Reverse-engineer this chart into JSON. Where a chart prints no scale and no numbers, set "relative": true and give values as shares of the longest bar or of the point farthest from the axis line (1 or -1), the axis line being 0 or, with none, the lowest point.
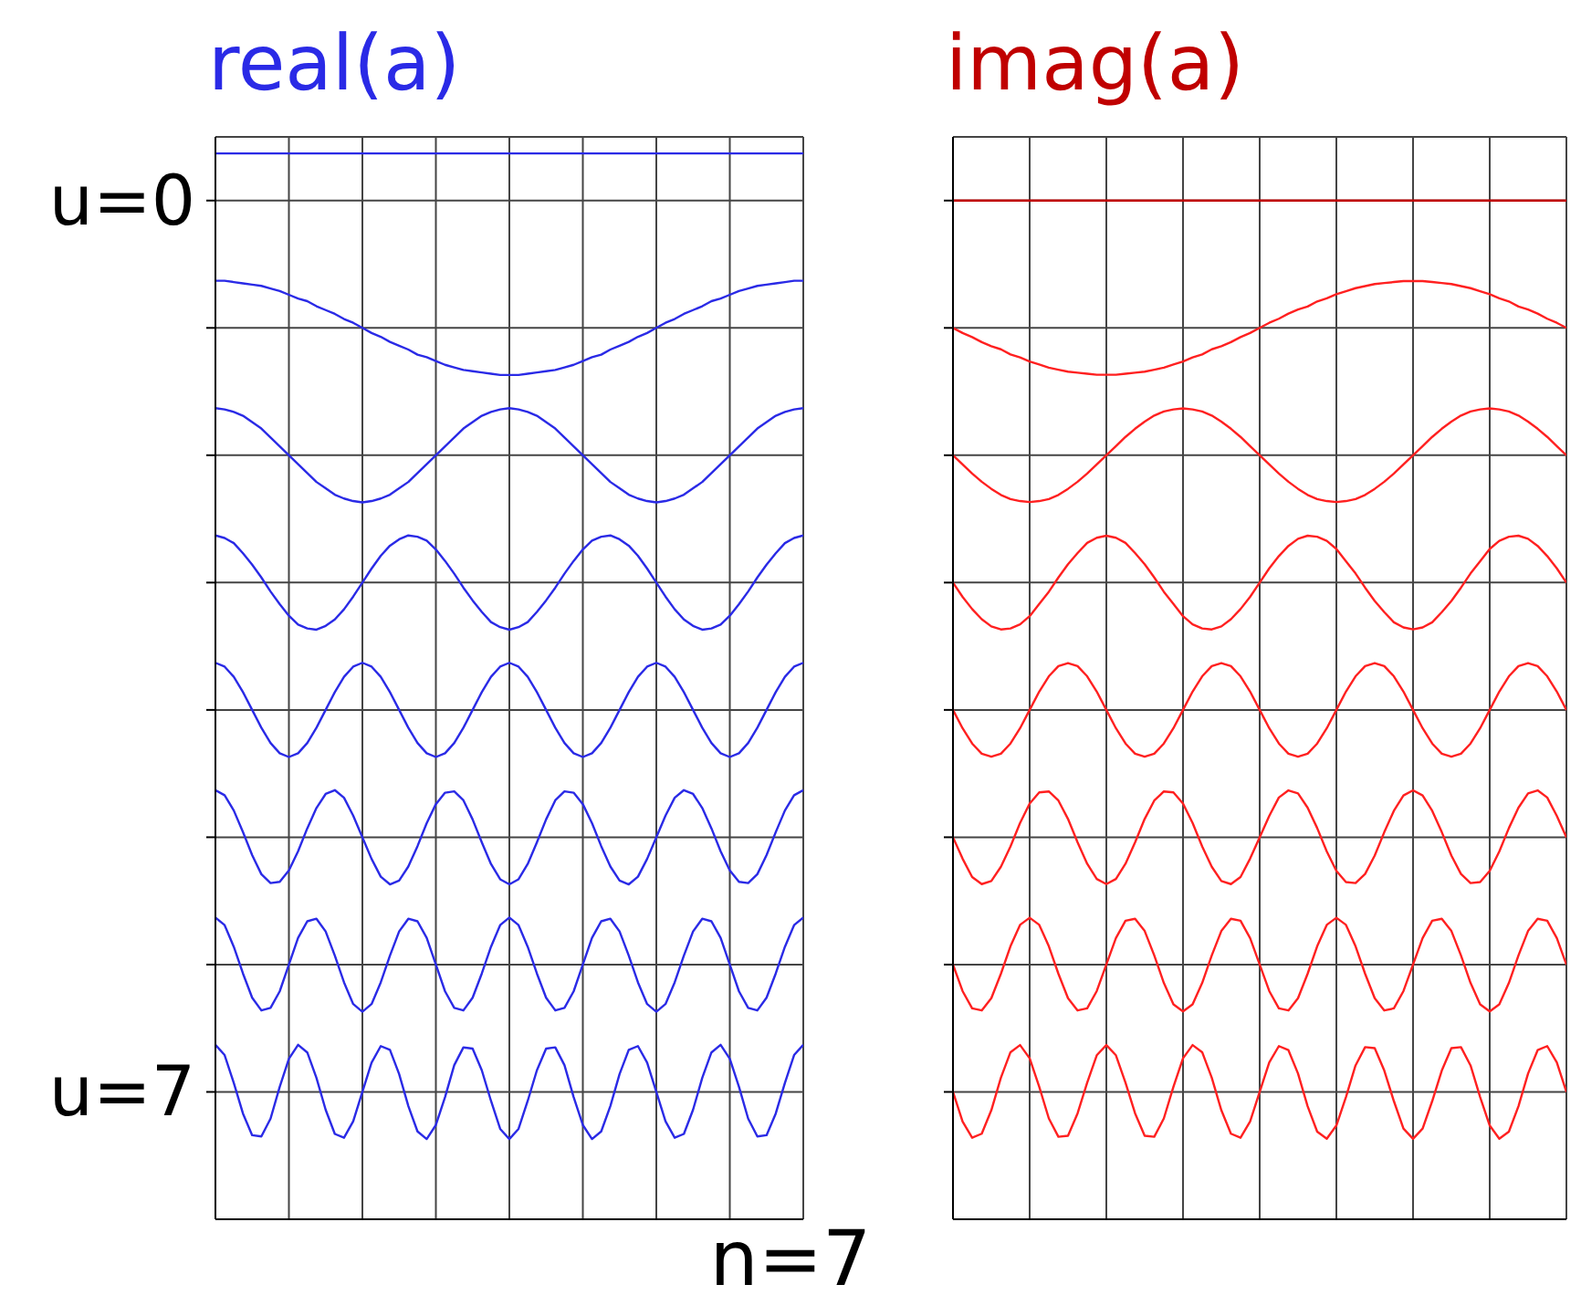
{
  "chart_data": [
    {
      "type": "line",
      "title": "real(a)",
      "annotations": [
        "n=7"
      ],
      "categories": [
        null,
        null,
        null,
        null,
        null,
        null,
        null,
        null,
        null,
        null,
        null,
        null,
        null,
        null,
        null,
        null,
        null,
        null,
        null,
        null,
        null,
        null,
        null,
        null,
        null,
        null,
        null,
        null,
        null,
        null,
        null,
        null,
        null,
        null,
        null,
        null,
        null,
        null,
        null,
        null,
        null,
        null,
        null,
        null,
        null,
        null,
        null,
        null,
        null,
        null,
        null,
        null,
        null,
        null,
        null,
        null,
        null,
        null,
        null,
        null,
        null,
        null,
        null,
        null,
        null
      ],
      "ylim": [
        -8,
        0.5
      ],
      "yticks": [
        {
          "value": 0,
          "label": "u=0"
        },
        {
          "value": -1,
          "label": null
        },
        {
          "value": -2,
          "label": null
        },
        {
          "value": -3,
          "label": null
        },
        {
          "value": -4,
          "label": null
        },
        {
          "value": -5,
          "label": null
        },
        {
          "value": -6,
          "label": null
        },
        {
          "value": -7,
          "label": "u=7"
        }
      ],
      "grid": true,
      "series": [
        {
          "color": "#2a2ae6",
          "values": [
            0.37,
            0.37,
            0.37,
            0.37,
            0.37,
            0.37,
            0.37,
            0.37,
            0.37,
            0.37,
            0.37,
            0.37,
            0.37,
            0.37,
            0.37,
            0.37,
            0.37,
            0.37,
            0.37,
            0.37,
            0.37,
            0.37,
            0.37,
            0.37,
            0.37,
            0.37,
            0.37,
            0.37,
            0.37,
            0.37,
            0.37,
            0.37,
            0.37,
            0.37,
            0.37,
            0.37,
            0.37,
            0.37,
            0.37,
            0.37,
            0.37,
            0.37,
            0.37,
            0.37,
            0.37,
            0.37,
            0.37,
            0.37,
            0.37,
            0.37,
            0.37,
            0.37,
            0.37,
            0.37,
            0.37,
            0.37,
            0.37,
            0.37,
            0.37,
            0.37,
            0.37,
            0.37,
            0.37,
            0.37,
            0.37
          ]
        },
        {
          "color": "#2a2ae6",
          "values": [
            -0.63,
            -0.63,
            -0.64,
            -0.65,
            -0.66,
            -0.67,
            -0.69,
            -0.71,
            -0.74,
            -0.77,
            -0.79,
            -0.83,
            -0.86,
            -0.89,
            -0.93,
            -0.96,
            -1,
            -1.04,
            -1.07,
            -1.11,
            -1.14,
            -1.17,
            -1.21,
            -1.23,
            -1.26,
            -1.29,
            -1.31,
            -1.33,
            -1.34,
            -1.35,
            -1.36,
            -1.37,
            -1.37,
            -1.37,
            -1.36,
            -1.35,
            -1.34,
            -1.33,
            -1.31,
            -1.29,
            -1.26,
            -1.23,
            -1.21,
            -1.17,
            -1.14,
            -1.11,
            -1.07,
            -1.04,
            -1,
            -0.96,
            -0.93,
            -0.89,
            -0.86,
            -0.83,
            -0.79,
            -0.77,
            -0.74,
            -0.71,
            -0.69,
            -0.67,
            -0.66,
            -0.65,
            -0.64,
            -0.63,
            -0.63
          ]
        },
        {
          "color": "#2a2ae6",
          "values": [
            -1.63,
            -1.64,
            -1.66,
            -1.69,
            -1.74,
            -1.79,
            -1.86,
            -1.93,
            -2,
            -2.07,
            -2.14,
            -2.21,
            -2.26,
            -2.31,
            -2.34,
            -2.36,
            -2.37,
            -2.36,
            -2.34,
            -2.31,
            -2.26,
            -2.21,
            -2.14,
            -2.07,
            -2,
            -1.93,
            -1.86,
            -1.79,
            -1.74,
            -1.69,
            -1.66,
            -1.64,
            -1.63,
            -1.64,
            -1.66,
            -1.69,
            -1.74,
            -1.79,
            -1.86,
            -1.93,
            -2,
            -2.07,
            -2.14,
            -2.21,
            -2.26,
            -2.31,
            -2.34,
            -2.36,
            -2.37,
            -2.36,
            -2.34,
            -2.31,
            -2.26,
            -2.21,
            -2.14,
            -2.07,
            -2,
            -1.93,
            -1.86,
            -1.79,
            -1.74,
            -1.69,
            -1.66,
            -1.64,
            -1.63
          ]
        },
        {
          "color": "#2a2ae6",
          "values": [
            -2.63,
            -2.65,
            -2.69,
            -2.77,
            -2.86,
            -2.96,
            -3.07,
            -3.17,
            -3.26,
            -3.33,
            -3.36,
            -3.37,
            -3.34,
            -3.29,
            -3.21,
            -3.11,
            -3,
            -2.89,
            -2.79,
            -2.71,
            -2.66,
            -2.63,
            -2.64,
            -2.67,
            -2.74,
            -2.83,
            -2.93,
            -3.04,
            -3.14,
            -3.23,
            -3.31,
            -3.35,
            -3.37,
            -3.35,
            -3.31,
            -3.23,
            -3.14,
            -3.04,
            -2.93,
            -2.83,
            -2.74,
            -2.67,
            -2.64,
            -2.63,
            -2.66,
            -2.71,
            -2.79,
            -2.89,
            -3,
            -3.11,
            -3.21,
            -3.29,
            -3.34,
            -3.37,
            -3.36,
            -3.33,
            -3.26,
            -3.17,
            -3.07,
            -2.96,
            -2.86,
            -2.77,
            -2.69,
            -2.65,
            -2.63
          ]
        },
        {
          "color": "#2a2ae6",
          "values": [
            -3.63,
            -3.66,
            -3.74,
            -3.86,
            -4,
            -4.14,
            -4.26,
            -4.34,
            -4.37,
            -4.34,
            -4.26,
            -4.14,
            -4,
            -3.86,
            -3.74,
            -3.66,
            -3.63,
            -3.66,
            -3.74,
            -3.86,
            -4,
            -4.14,
            -4.26,
            -4.34,
            -4.37,
            -4.34,
            -4.26,
            -4.14,
            -4,
            -3.86,
            -3.74,
            -3.66,
            -3.63,
            -3.66,
            -3.74,
            -3.86,
            -4,
            -4.14,
            -4.26,
            -4.34,
            -4.37,
            -4.34,
            -4.26,
            -4.14,
            -4,
            -3.86,
            -3.74,
            -3.66,
            -3.63,
            -3.66,
            -3.74,
            -3.86,
            -4,
            -4.14,
            -4.26,
            -4.34,
            -4.37,
            -4.34,
            -4.26,
            -4.14,
            -4,
            -3.86,
            -3.74,
            -3.66,
            -3.63
          ]
        },
        {
          "color": "#2a2ae6",
          "values": [
            -4.63,
            -4.67,
            -4.79,
            -4.96,
            -5.14,
            -5.29,
            -5.36,
            -5.35,
            -5.26,
            -5.11,
            -4.93,
            -4.77,
            -4.66,
            -4.63,
            -4.69,
            -4.83,
            -5,
            -5.17,
            -5.31,
            -5.37,
            -5.34,
            -5.23,
            -5.07,
            -4.89,
            -4.74,
            -4.65,
            -4.64,
            -4.71,
            -4.86,
            -5.04,
            -5.21,
            -5.33,
            -5.37,
            -5.33,
            -5.21,
            -5.04,
            -4.86,
            -4.71,
            -4.64,
            -4.65,
            -4.74,
            -4.89,
            -5.07,
            -5.23,
            -5.34,
            -5.37,
            -5.31,
            -5.17,
            -5,
            -4.83,
            -4.69,
            -4.63,
            -4.66,
            -4.77,
            -4.93,
            -5.11,
            -5.26,
            -5.35,
            -5.36,
            -5.29,
            -5.14,
            -4.96,
            -4.79,
            -4.67,
            -4.63
          ]
        },
        {
          "color": "#2a2ae6",
          "values": [
            -5.63,
            -5.69,
            -5.86,
            -6.07,
            -6.26,
            -6.36,
            -6.34,
            -6.21,
            -6,
            -5.79,
            -5.66,
            -5.64,
            -5.74,
            -5.93,
            -6.14,
            -6.31,
            -6.37,
            -6.31,
            -6.14,
            -5.93,
            -5.74,
            -5.64,
            -5.66,
            -5.79,
            -6,
            -6.21,
            -6.34,
            -6.36,
            -6.26,
            -6.07,
            -5.86,
            -5.69,
            -5.63,
            -5.69,
            -5.86,
            -6.07,
            -6.26,
            -6.36,
            -6.34,
            -6.21,
            -6,
            -5.79,
            -5.66,
            -5.64,
            -5.74,
            -5.93,
            -6.14,
            -6.31,
            -6.37,
            -6.31,
            -6.14,
            -5.93,
            -5.74,
            -5.64,
            -5.66,
            -5.79,
            -6,
            -6.21,
            -6.34,
            -6.36,
            -6.26,
            -6.07,
            -5.86,
            -5.69,
            -5.63
          ]
        },
        {
          "color": "#2a2ae6",
          "values": [
            -6.63,
            -6.71,
            -6.93,
            -7.17,
            -7.34,
            -7.35,
            -7.21,
            -6.96,
            -6.74,
            -6.63,
            -6.69,
            -6.89,
            -7.14,
            -7.33,
            -7.36,
            -7.23,
            -7,
            -6.77,
            -6.64,
            -6.67,
            -6.86,
            -7.11,
            -7.31,
            -7.37,
            -7.26,
            -7.04,
            -6.79,
            -6.65,
            -6.66,
            -6.83,
            -7.07,
            -7.29,
            -7.37,
            -7.29,
            -7.07,
            -6.83,
            -6.66,
            -6.65,
            -6.79,
            -7.04,
            -7.26,
            -7.37,
            -7.31,
            -7.11,
            -6.86,
            -6.67,
            -6.64,
            -6.77,
            -7,
            -7.23,
            -7.36,
            -7.33,
            -7.14,
            -6.89,
            -6.69,
            -6.63,
            -6.74,
            -6.96,
            -7.21,
            -7.35,
            -7.34,
            -7.17,
            -6.93,
            -6.71,
            -6.63
          ]
        }
      ]
    },
    {
      "type": "line",
      "title": "imag(a)",
      "relative": true,
      "categories": [
        null,
        null,
        null,
        null,
        null,
        null,
        null,
        null,
        null,
        null,
        null,
        null,
        null,
        null,
        null,
        null,
        null,
        null,
        null,
        null,
        null,
        null,
        null,
        null,
        null,
        null,
        null,
        null,
        null,
        null,
        null,
        null,
        null,
        null,
        null,
        null,
        null,
        null,
        null,
        null,
        null,
        null,
        null,
        null,
        null,
        null,
        null,
        null,
        null,
        null,
        null,
        null,
        null,
        null,
        null,
        null,
        null,
        null,
        null,
        null,
        null,
        null,
        null,
        null,
        null
      ],
      "grid": true,
      "series": [
        {
          "color": "#c00000",
          "values": [
            1,
            1,
            1,
            1,
            1,
            1,
            1,
            1,
            1,
            1,
            1,
            1,
            1,
            1,
            1,
            1,
            1,
            1,
            1,
            1,
            1,
            1,
            1,
            1,
            1,
            1,
            1,
            1,
            1,
            1,
            1,
            1,
            1,
            1,
            1,
            1,
            1,
            1,
            1,
            1,
            1,
            1,
            1,
            1,
            1,
            1,
            1,
            1,
            1,
            1,
            1,
            1,
            1,
            1,
            1,
            1,
            1,
            1,
            1,
            1,
            1,
            1,
            1,
            1,
            1
          ]
        },
        {
          "color": "#ff2020",
          "values": [
            0.875,
            0.87,
            0.866,
            0.861,
            0.857,
            0.854,
            0.849,
            0.846,
            0.842,
            0.839,
            0.836,
            0.834,
            0.832,
            0.831,
            0.83,
            0.829,
            0.829,
            0.829,
            0.83,
            0.831,
            0.832,
            0.834,
            0.836,
            0.839,
            0.842,
            0.846,
            0.849,
            0.854,
            0.857,
            0.861,
            0.866,
            0.87,
            0.875,
            0.88,
            0.884,
            0.889,
            0.893,
            0.896,
            0.901,
            0.904,
            0.908,
            0.911,
            0.914,
            0.916,
            0.918,
            0.919,
            0.92,
            0.921,
            0.921,
            0.921,
            0.92,
            0.919,
            0.918,
            0.916,
            0.914,
            0.911,
            0.908,
            0.904,
            0.901,
            0.896,
            0.893,
            0.889,
            0.884,
            0.88,
            0.875
          ]
        },
        {
          "color": "#ff2020",
          "values": [
            0.75,
            0.741,
            0.732,
            0.724,
            0.717,
            0.711,
            0.707,
            0.705,
            0.704,
            0.705,
            0.707,
            0.711,
            0.717,
            0.724,
            0.732,
            0.741,
            0.75,
            0.759,
            0.768,
            0.776,
            0.783,
            0.789,
            0.793,
            0.795,
            0.796,
            0.795,
            0.793,
            0.789,
            0.783,
            0.776,
            0.768,
            0.759,
            0.75,
            0.741,
            0.732,
            0.724,
            0.717,
            0.711,
            0.707,
            0.705,
            0.704,
            0.705,
            0.707,
            0.711,
            0.717,
            0.724,
            0.732,
            0.741,
            0.75,
            0.759,
            0.768,
            0.776,
            0.783,
            0.789,
            0.793,
            0.795,
            0.796,
            0.795,
            0.793,
            0.789,
            0.783,
            0.776,
            0.768,
            0.759,
            0.75
          ]
        },
        {
          "color": "#ff2020",
          "values": [
            0.625,
            0.611,
            0.599,
            0.589,
            0.582,
            0.579,
            0.58,
            0.584,
            0.592,
            0.604,
            0.616,
            0.63,
            0.643,
            0.654,
            0.664,
            0.669,
            0.671,
            0.669,
            0.664,
            0.654,
            0.643,
            0.63,
            0.616,
            0.604,
            0.592,
            0.584,
            0.58,
            0.579,
            0.582,
            0.589,
            0.599,
            0.611,
            0.625,
            0.639,
            0.651,
            0.661,
            0.668,
            0.671,
            0.67,
            0.666,
            0.658,
            0.646,
            0.634,
            0.62,
            0.607,
            0.596,
            0.586,
            0.581,
            0.579,
            0.581,
            0.586,
            0.596,
            0.607,
            0.62,
            0.634,
            0.646,
            0.658,
            0.666,
            0.67,
            0.671,
            0.668,
            0.661,
            0.651,
            0.639,
            0.625
          ]
        },
        {
          "color": "#ff2020",
          "values": [
            0.5,
            0.482,
            0.467,
            0.457,
            0.454,
            0.457,
            0.467,
            0.482,
            0.5,
            0.518,
            0.533,
            0.543,
            0.546,
            0.543,
            0.533,
            0.518,
            0.5,
            0.482,
            0.467,
            0.457,
            0.454,
            0.457,
            0.467,
            0.482,
            0.5,
            0.518,
            0.533,
            0.543,
            0.546,
            0.543,
            0.533,
            0.518,
            0.5,
            0.482,
            0.467,
            0.457,
            0.454,
            0.457,
            0.467,
            0.482,
            0.5,
            0.518,
            0.533,
            0.543,
            0.546,
            0.543,
            0.533,
            0.518,
            0.5,
            0.482,
            0.467,
            0.457,
            0.454,
            0.457,
            0.467,
            0.482,
            0.5,
            0.518,
            0.533,
            0.543,
            0.546,
            0.543,
            0.533,
            0.518,
            0.5
          ]
        },
        {
          "color": "#ff2020",
          "values": [
            0.375,
            0.354,
            0.336,
            0.329,
            0.332,
            0.346,
            0.366,
            0.389,
            0.408,
            0.419,
            0.42,
            0.411,
            0.393,
            0.37,
            0.349,
            0.334,
            0.329,
            0.334,
            0.349,
            0.37,
            0.393,
            0.411,
            0.42,
            0.419,
            0.408,
            0.389,
            0.366,
            0.346,
            0.332,
            0.329,
            0.336,
            0.354,
            0.375,
            0.396,
            0.414,
            0.421,
            0.418,
            0.404,
            0.384,
            0.361,
            0.342,
            0.331,
            0.33,
            0.339,
            0.357,
            0.38,
            0.401,
            0.416,
            0.421,
            0.416,
            0.401,
            0.38,
            0.357,
            0.339,
            0.33,
            0.331,
            0.342,
            0.361,
            0.384,
            0.404,
            0.418,
            0.421,
            0.414,
            0.396,
            0.375
          ]
        },
        {
          "color": "#ff2020",
          "values": [
            0.25,
            0.224,
            0.207,
            0.205,
            0.217,
            0.241,
            0.268,
            0.289,
            0.296,
            0.289,
            0.268,
            0.241,
            0.217,
            0.205,
            0.207,
            0.224,
            0.25,
            0.276,
            0.293,
            0.295,
            0.283,
            0.259,
            0.232,
            0.211,
            0.204,
            0.211,
            0.232,
            0.259,
            0.283,
            0.295,
            0.293,
            0.276,
            0.25,
            0.224,
            0.207,
            0.205,
            0.217,
            0.241,
            0.268,
            0.289,
            0.296,
            0.289,
            0.268,
            0.241,
            0.217,
            0.205,
            0.207,
            0.224,
            0.25,
            0.276,
            0.293,
            0.295,
            0.283,
            0.259,
            0.232,
            0.211,
            0.204,
            0.211,
            0.232,
            0.259,
            0.283,
            0.295,
            0.293,
            0.276,
            0.25
          ]
        },
        {
          "color": "#ff2020",
          "values": [
            0.125,
            0.096,
            0.08,
            0.084,
            0.107,
            0.139,
            0.164,
            0.171,
            0.158,
            0.13,
            0.099,
            0.081,
            0.082,
            0.104,
            0.134,
            0.161,
            0.171,
            0.161,
            0.134,
            0.104,
            0.082,
            0.081,
            0.099,
            0.13,
            0.158,
            0.171,
            0.164,
            0.139,
            0.107,
            0.084,
            0.08,
            0.096,
            0.125,
            0.154,
            0.17,
            0.166,
            0.143,
            0.111,
            0.086,
            0.079,
            0.092,
            0.12,
            0.151,
            0.169,
            0.168,
            0.146,
            0.116,
            0.089,
            0.079,
            0.089,
            0.116,
            0.146,
            0.168,
            0.169,
            0.151,
            0.12,
            0.092,
            0.079,
            0.086,
            0.111,
            0.143,
            0.166,
            0.17,
            0.154,
            0.125
          ]
        }
      ]
    }
  ]
}
